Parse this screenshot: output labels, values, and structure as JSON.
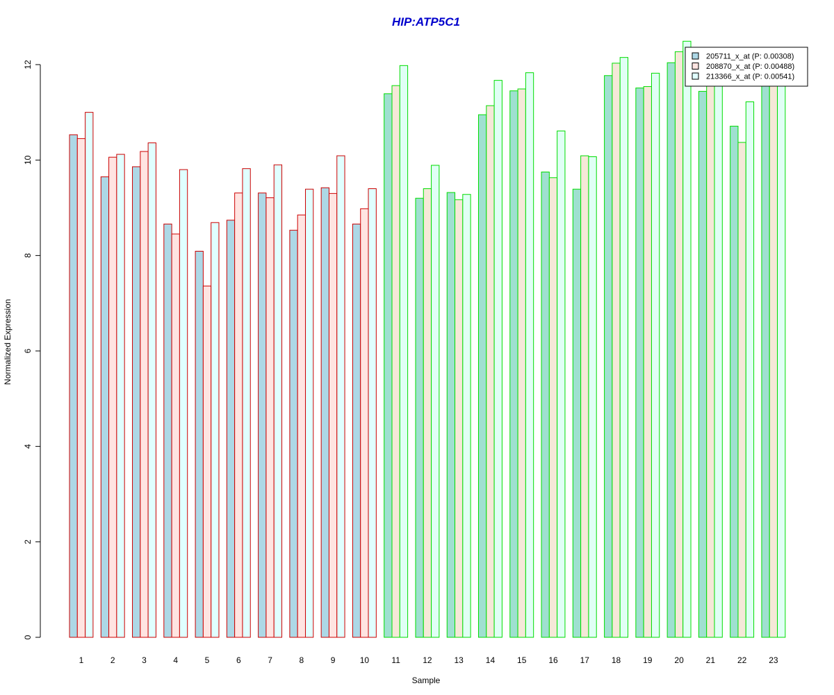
{
  "chart_data": {
    "type": "bar",
    "title": "HIP:ATP5C1",
    "title_color": "#0000CC",
    "xlabel": "Sample",
    "ylabel": "Normalized Expression",
    "ylim": [
      0,
      12.5
    ],
    "yticks": [
      0,
      2,
      4,
      6,
      8,
      10,
      12
    ],
    "grid": false,
    "legend_position": "top-right",
    "categories": [
      "1",
      "2",
      "3",
      "4",
      "5",
      "6",
      "7",
      "8",
      "9",
      "10",
      "11",
      "12",
      "13",
      "14",
      "15",
      "16",
      "17",
      "18",
      "19",
      "20",
      "21",
      "22",
      "23"
    ],
    "group_border_colors": {
      "group_a": "#CC0000",
      "group_b": "#00DD00",
      "group_a_samples": [
        "1",
        "2",
        "3",
        "4",
        "5",
        "6",
        "7",
        "8",
        "9",
        "10"
      ],
      "group_b_samples": [
        "11",
        "12",
        "13",
        "14",
        "15",
        "16",
        "17",
        "18",
        "19",
        "20",
        "21",
        "22",
        "23"
      ]
    },
    "series": [
      {
        "name": "205711_x_at (P: 0.00308)",
        "fill_group_a": "#ADD8E6",
        "fill_group_b": "#9FE0D0",
        "values": [
          10.53,
          9.65,
          9.86,
          8.66,
          8.09,
          8.74,
          9.31,
          8.53,
          9.42,
          8.66,
          11.39,
          9.2,
          9.32,
          10.95,
          11.45,
          9.75,
          9.39,
          11.77,
          11.51,
          12.04,
          11.44,
          10.71,
          11.7
        ]
      },
      {
        "name": "208870_x_at (P: 0.00488)",
        "fill_group_a": "#FFE4E1",
        "fill_group_b": "#F5E8D8",
        "values": [
          10.45,
          10.06,
          10.18,
          8.45,
          7.36,
          9.31,
          9.21,
          8.85,
          9.3,
          8.98,
          11.56,
          9.4,
          9.17,
          11.14,
          11.49,
          9.63,
          10.09,
          12.03,
          11.54,
          12.27,
          11.7,
          10.37,
          11.7
        ]
      },
      {
        "name": "213366_x_at (P: 0.00541)",
        "fill_group_a": "#E0FFFF",
        "fill_group_b": "#E0FFF5",
        "values": [
          11.0,
          10.12,
          10.36,
          9.8,
          8.69,
          9.82,
          9.9,
          9.39,
          10.09,
          9.4,
          11.98,
          9.89,
          9.28,
          11.67,
          11.83,
          10.61,
          10.07,
          12.15,
          11.82,
          12.49,
          11.7,
          11.22,
          11.7
        ]
      }
    ]
  }
}
